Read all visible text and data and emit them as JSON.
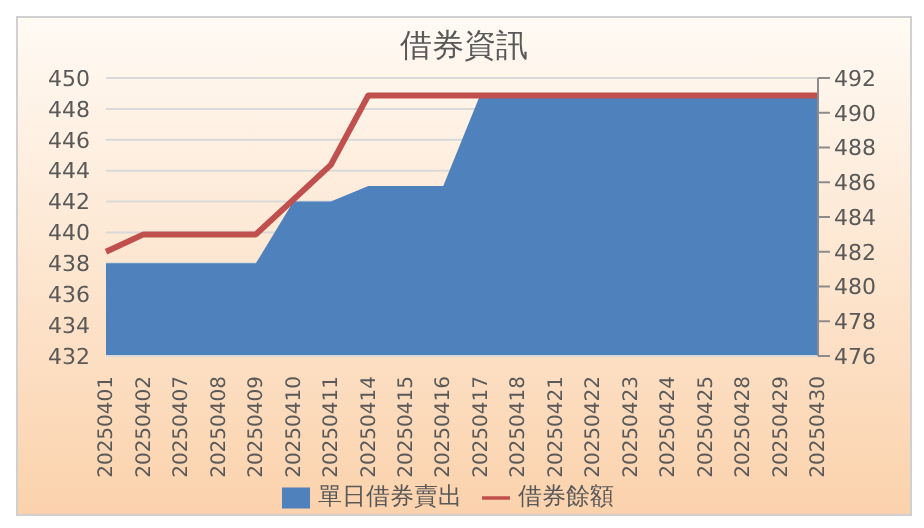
{
  "chart_data": {
    "type": "area",
    "title": "借券資訊",
    "categories": [
      "20250401",
      "20250402",
      "20250407",
      "20250408",
      "20250409",
      "20250410",
      "20250411",
      "20250414",
      "20250415",
      "20250416",
      "20250417",
      "20250418",
      "20250421",
      "20250422",
      "20250423",
      "20250424",
      "20250425",
      "20250428",
      "20250429",
      "20250430"
    ],
    "series": [
      {
        "name": "單日借券賣出",
        "color": "#4f81bd",
        "values": [
          438,
          438,
          438,
          438,
          438,
          442,
          442,
          443,
          443,
          443,
          449,
          449,
          449,
          449,
          449,
          449,
          449,
          449,
          449,
          449
        ]
      },
      {
        "name": "借券餘額",
        "type": "line",
        "axis": "y2",
        "color": "#c0504d",
        "values": [
          482,
          483,
          483,
          483,
          483,
          485,
          487,
          491,
          491,
          491,
          491,
          491,
          491,
          491,
          491,
          491,
          491,
          491,
          491,
          491
        ]
      }
    ],
    "ylim": [
      432,
      450
    ],
    "yticks": [
      432,
      434,
      436,
      438,
      440,
      442,
      444,
      446,
      448,
      450
    ],
    "y2lim": [
      476,
      492
    ],
    "y2ticks": [
      476,
      478,
      480,
      482,
      484,
      486,
      488,
      490,
      492
    ],
    "grid": "y",
    "legend": "bottom",
    "marker": "none"
  }
}
